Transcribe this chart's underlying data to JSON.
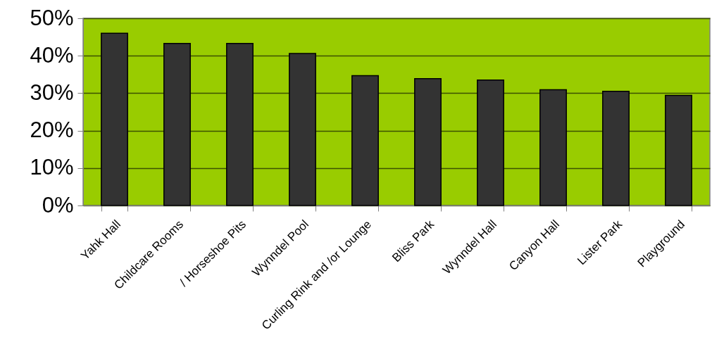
{
  "chart_data": {
    "type": "bar",
    "categories": [
      "Yahk Hall",
      "Childcare Rooms",
      "/ Horseshoe Pits",
      "Wynndel Pool",
      "Curling Rink and /or Lounge",
      "Bliss Park",
      "Wynndel Hall",
      "Canyon Hall",
      "Lister Park",
      "Playground"
    ],
    "values": [
      46,
      43.3,
      43.3,
      40.6,
      34.7,
      33.9,
      33.5,
      30.9,
      30.5,
      29.4
    ],
    "color": "#333333",
    "ylim": [
      0,
      50
    ],
    "yticks": [
      {
        "value": 0,
        "label": "0%"
      },
      {
        "value": 10,
        "label": "10%"
      },
      {
        "value": 20,
        "label": "20%"
      },
      {
        "value": 30,
        "label": "30%"
      },
      {
        "value": 40,
        "label": "40%"
      },
      {
        "value": 50,
        "label": "50%"
      }
    ],
    "grid": "y"
  }
}
